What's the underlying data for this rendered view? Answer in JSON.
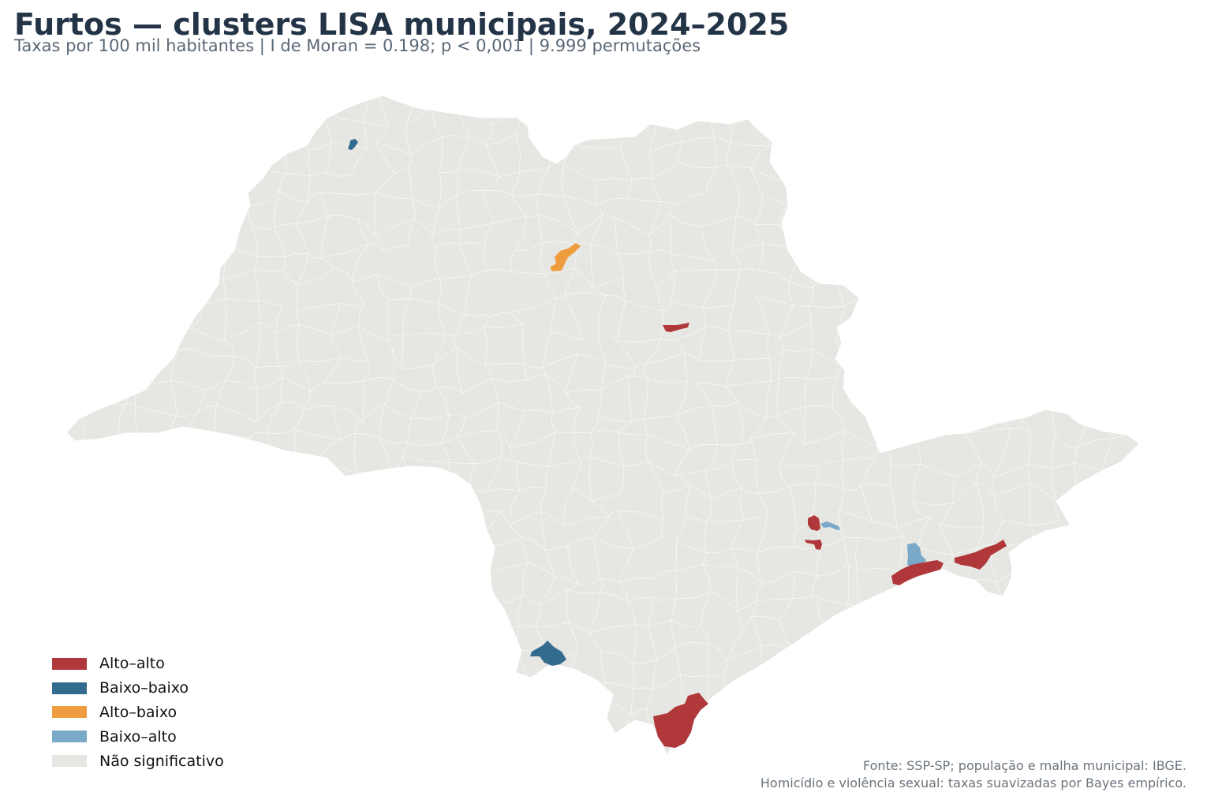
{
  "title": "Furtos — clusters LISA municipais, 2024–2025",
  "subtitle": "Taxas por 100 mil habitantes | I de Moran = 0.198; p < 0,001 | 9.999 permutações",
  "colors": {
    "alto_alto": "#b0373a",
    "baixo_baixo": "#336b8f",
    "alto_baixo": "#ef9c3e",
    "baixo_alto": "#79a8c8",
    "nao_significativo": "#e6e6e2",
    "borders": "#ffffff"
  },
  "legend": [
    {
      "label": "Alto–alto",
      "color": "#b0373a"
    },
    {
      "label": "Baixo–baixo",
      "color": "#336b8f"
    },
    {
      "label": "Alto–baixo",
      "color": "#ef9c3e"
    },
    {
      "label": "Baixo–alto",
      "color": "#79a8c8"
    },
    {
      "label": "Não significativo",
      "color": "#e6e6e2"
    }
  ],
  "source": {
    "line1": "Fonte: SSP-SP; população e malha municipal: IBGE.",
    "line2": "Homicídio e violência sexual: taxas suavizadas por Bayes empírico."
  }
}
